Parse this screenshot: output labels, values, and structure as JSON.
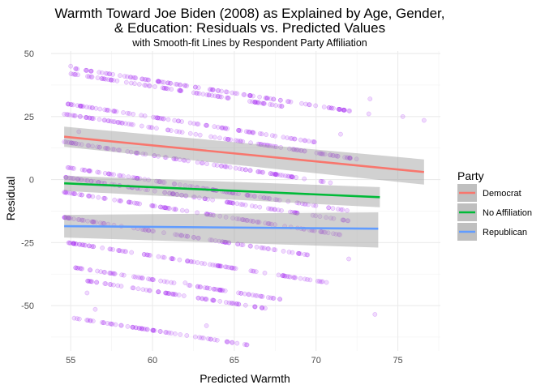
{
  "chart_data": {
    "type": "scatter",
    "title_line1": "Warmth Toward Joe Biden (2008) as Explained by Age, Gender,",
    "title_line2": "& Education: Residuals vs. Predicted Values",
    "subtitle": "with Smooth-fit Lines by Respondent Party Affiliation",
    "xlabel": "Predicted Warmth",
    "ylabel": "Residual",
    "xlim": [
      53.8,
      77.6
    ],
    "ylim": [
      -68,
      51
    ],
    "xticks": [
      55,
      60,
      65,
      70,
      75
    ],
    "yticks": [
      -50,
      -25,
      0,
      25,
      50
    ],
    "grid": true,
    "point_color": "#a020f0",
    "legend": {
      "title": "Party",
      "placement": "right",
      "entries": [
        {
          "label": "Democrat",
          "color": "#f8766d"
        },
        {
          "label": "No Affiliation",
          "color": "#00ba38"
        },
        {
          "label": "Republican",
          "color": "#619cff"
        }
      ]
    },
    "smooth_lines": [
      {
        "name": "Democrat",
        "color": "#f8766d",
        "x": [
          54.6,
          76.6
        ],
        "y": [
          17,
          3
        ],
        "band_upper": [
          21,
          8
        ],
        "band_lower": [
          13,
          -2
        ]
      },
      {
        "name": "No Affiliation",
        "color": "#00ba38",
        "x": [
          54.6,
          73.9
        ],
        "y": [
          -1.5,
          -7
        ],
        "band_upper": [
          1.5,
          -3
        ],
        "band_lower": [
          -4.5,
          -11
        ]
      },
      {
        "name": "Republican",
        "color": "#619cff",
        "x": [
          54.6,
          73.8
        ],
        "y": [
          -18.5,
          -19.5
        ],
        "band_upper": [
          -14,
          -13
        ],
        "band_lower": [
          -23,
          -27
        ]
      }
    ],
    "residual_bands": [
      {
        "x_from": 55.3,
        "x_to": 73.3,
        "y_at_start": 44
      },
      {
        "x_from": 55.0,
        "x_to": 68.0,
        "y_at_start": 42
      },
      {
        "x_from": 54.8,
        "x_to": 70.0,
        "y_at_start": 30
      },
      {
        "x_from": 54.6,
        "x_to": 73.0,
        "y_at_start": 26
      },
      {
        "x_from": 54.6,
        "x_to": 71.0,
        "y_at_start": 15
      },
      {
        "x_from": 54.6,
        "x_to": 72.0,
        "y_at_start": 5
      },
      {
        "x_from": 54.6,
        "x_to": 72.0,
        "y_at_start": 1
      },
      {
        "x_from": 54.6,
        "x_to": 72.0,
        "y_at_start": -5
      },
      {
        "x_from": 54.6,
        "x_to": 70.0,
        "y_at_start": -15
      },
      {
        "x_from": 54.8,
        "x_to": 71.0,
        "y_at_start": -25
      },
      {
        "x_from": 55.3,
        "x_to": 68.0,
        "y_at_start": -35
      },
      {
        "x_from": 55.8,
        "x_to": 67.0,
        "y_at_start": -40
      },
      {
        "x_from": 55.2,
        "x_to": 66.0,
        "y_at_start": -55
      }
    ],
    "outlier_points": [
      {
        "x": 75.3,
        "y": 25
      },
      {
        "x": 76.6,
        "y": 23.5
      },
      {
        "x": 71.5,
        "y": 18
      },
      {
        "x": 73.3,
        "y": 32
      },
      {
        "x": 72.0,
        "y": -31.5
      },
      {
        "x": 73.6,
        "y": -53.5
      },
      {
        "x": 70.4,
        "y": -40.5
      },
      {
        "x": 62.0,
        "y": -41
      },
      {
        "x": 55.0,
        "y": 45
      },
      {
        "x": 56.5,
        "y": -51.5
      },
      {
        "x": 56.0,
        "y": -45
      },
      {
        "x": 68.0,
        "y": -38
      },
      {
        "x": 63.3,
        "y": -58
      },
      {
        "x": 55.5,
        "y": 19
      }
    ]
  }
}
